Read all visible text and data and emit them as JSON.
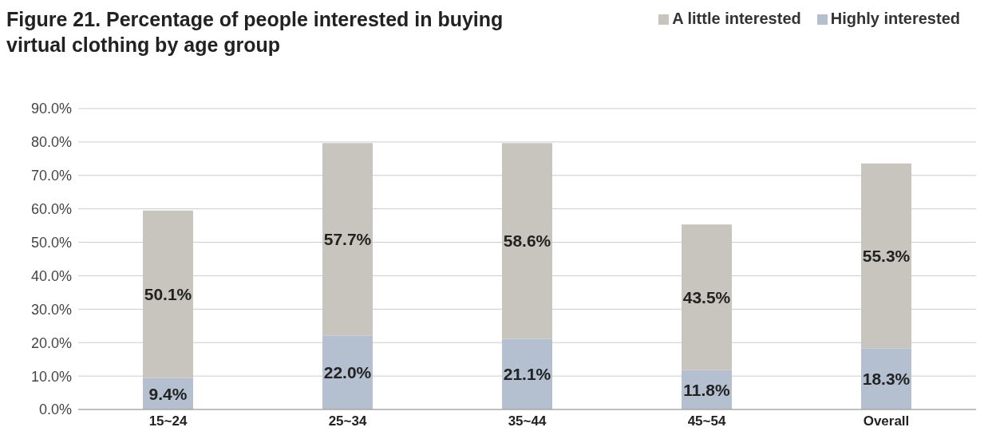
{
  "chart_data": {
    "type": "bar",
    "title": "Figure 21. Percentage of people interested in buying virtual clothing by age group",
    "categories": [
      "15~24",
      "25~34",
      "35~44",
      "45~54",
      "Overall"
    ],
    "stacked": true,
    "series": [
      {
        "name": "Highly interested",
        "color": "#b4c0cf",
        "values": [
          9.4,
          22.0,
          21.1,
          11.8,
          18.3
        ],
        "value_labels": [
          "9.4%",
          "22.0%",
          "21.1%",
          "11.8%",
          "18.3%"
        ]
      },
      {
        "name": "A little interested",
        "color": "#c8c5be",
        "values": [
          50.1,
          57.7,
          58.6,
          43.5,
          55.3
        ],
        "value_labels": [
          "50.1%",
          "57.7%",
          "58.6%",
          "43.5%",
          "55.3%"
        ]
      }
    ],
    "ylim": [
      0,
      90
    ],
    "yticks": [
      {
        "value": 0,
        "label": "0.0%"
      },
      {
        "value": 10,
        "label": "10.0%"
      },
      {
        "value": 20,
        "label": "20.0%"
      },
      {
        "value": 30,
        "label": "30.0%"
      },
      {
        "value": 40,
        "label": "40.0%"
      },
      {
        "value": 50,
        "label": "50.0%"
      },
      {
        "value": 60,
        "label": "60.0%"
      },
      {
        "value": 70,
        "label": "70.0%"
      },
      {
        "value": 80,
        "label": "80.0%"
      },
      {
        "value": 90,
        "label": "90.0%"
      }
    ],
    "grid": "y",
    "legend": "top right"
  }
}
